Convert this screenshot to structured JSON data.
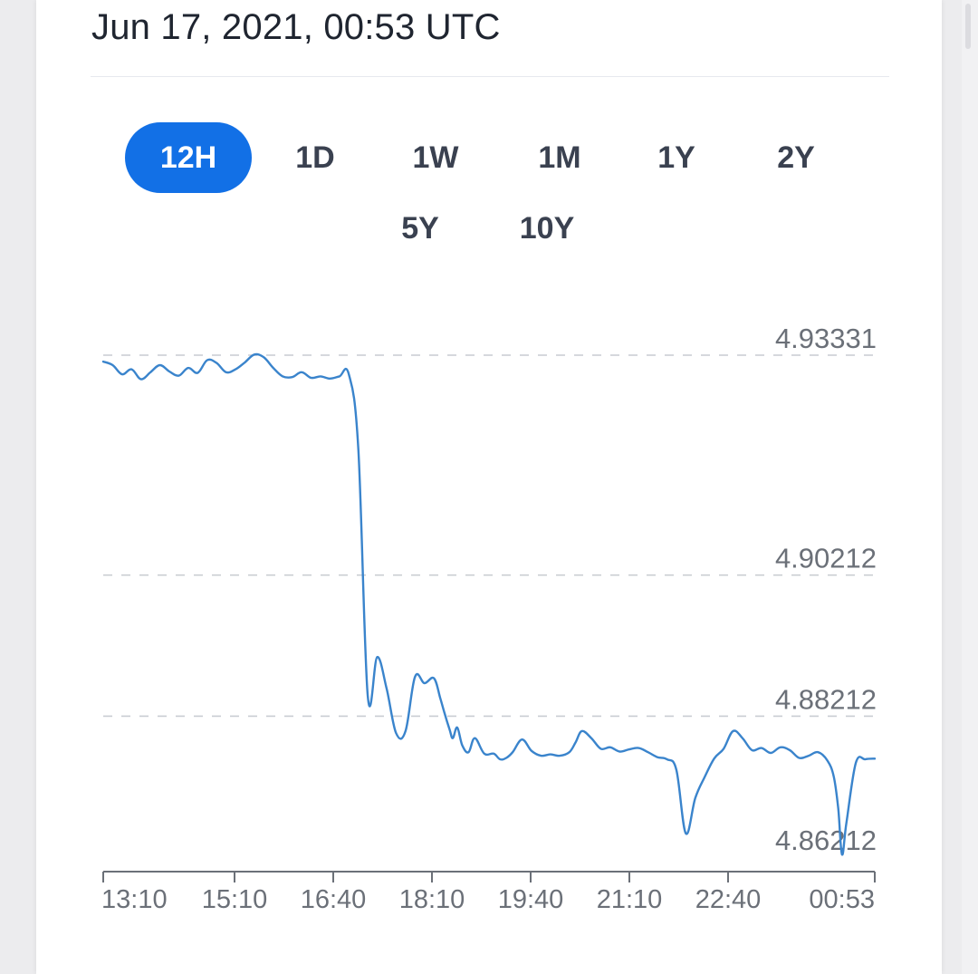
{
  "header": {
    "timestamp": "Jun 17, 2021, 00:53 UTC"
  },
  "ranges": [
    {
      "label": "12H",
      "active": true
    },
    {
      "label": "1D",
      "active": false
    },
    {
      "label": "1W",
      "active": false
    },
    {
      "label": "1M",
      "active": false
    },
    {
      "label": "1Y",
      "active": false
    },
    {
      "label": "2Y",
      "active": false
    },
    {
      "label": "5Y",
      "active": false
    },
    {
      "label": "10Y",
      "active": false
    }
  ],
  "colors": {
    "accent": "#1270e6",
    "line": "#3a84cc",
    "grid": "#c9ccd2",
    "axis": "#6b7078"
  },
  "chart_data": {
    "type": "line",
    "title": "",
    "xlabel": "",
    "ylabel": "",
    "x_ticks": [
      "13:10",
      "15:10",
      "16:40",
      "18:10",
      "19:40",
      "21:10",
      "22:40",
      "00:53"
    ],
    "y_ticks": [
      "4.93331",
      "4.90212",
      "4.88212",
      "4.86212"
    ],
    "y_tick_values": [
      4.93331,
      4.90212,
      4.88212,
      4.86212
    ],
    "ylim": [
      4.8602,
      4.93331
    ],
    "grid": "horizontal dashed",
    "legend": "none",
    "series": [
      {
        "x": [
          0,
          0.15,
          0.3,
          0.45,
          0.6,
          0.75,
          0.9,
          1.05,
          1.2,
          1.35,
          1.5,
          1.65,
          1.8,
          1.95,
          2.1,
          2.25,
          2.4,
          2.55,
          2.7,
          2.85,
          3.0,
          3.15,
          3.3,
          3.45,
          3.6,
          3.75,
          3.9,
          4.05,
          4.2,
          4.35,
          4.5,
          4.65,
          4.8,
          4.95,
          5.1,
          5.25,
          5.35,
          5.42,
          5.5,
          5.55,
          5.62,
          5.7,
          5.8,
          5.9,
          6.05,
          6.2,
          6.3,
          6.4,
          6.5,
          6.65,
          6.8,
          6.95,
          7.1,
          7.25,
          7.4,
          7.5,
          7.6,
          7.75,
          7.9,
          8.05,
          8.2,
          8.35,
          8.5,
          8.65,
          8.8,
          8.95,
          9.1,
          9.25,
          9.4,
          9.55,
          9.7,
          9.85,
          10.0,
          10.15,
          10.3,
          10.45,
          10.6,
          10.75,
          10.9,
          11.05,
          11.2,
          11.35,
          11.5,
          11.6,
          11.67,
          11.73,
          11.8,
          11.95,
          12.1,
          12.25
        ],
        "y": [
          4.9324,
          4.9319,
          4.9306,
          4.9313,
          4.9299,
          4.9309,
          4.9319,
          4.931,
          4.9304,
          4.9315,
          4.9308,
          4.9326,
          4.9322,
          4.9309,
          4.9313,
          4.9323,
          4.9334,
          4.933,
          4.9315,
          4.9303,
          4.9302,
          4.9309,
          4.9301,
          4.9303,
          4.93,
          4.9303,
          4.9306,
          4.92,
          4.885,
          4.8905,
          4.886,
          4.8797,
          4.88,
          4.8877,
          4.8868,
          4.8875,
          4.8847,
          4.8825,
          4.8802,
          4.879,
          4.8805,
          4.878,
          4.877,
          4.879,
          4.8768,
          4.8768,
          4.876,
          4.8762,
          4.877,
          4.8788,
          4.8772,
          4.8765,
          4.8767,
          4.8765,
          4.877,
          4.8784,
          4.88,
          4.879,
          4.8775,
          4.8777,
          4.8771,
          4.8774,
          4.8776,
          4.877,
          4.8763,
          4.876,
          4.8745,
          4.8655,
          4.8705,
          4.8735,
          4.8761,
          4.8775,
          4.88,
          4.879,
          4.8773,
          4.8776,
          4.8769,
          4.8777,
          4.8773,
          4.8762,
          4.8765,
          4.877,
          4.8758,
          4.8735,
          4.869,
          4.8625,
          4.867,
          4.8755,
          4.876,
          4.8761
        ]
      }
    ]
  }
}
